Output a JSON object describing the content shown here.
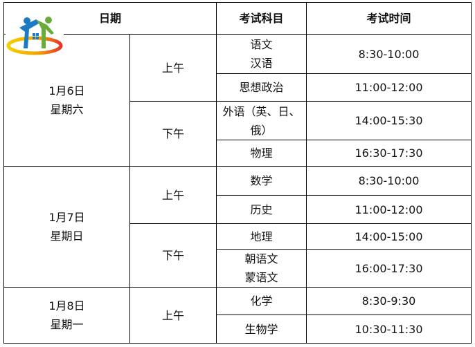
{
  "header": {
    "date": "日期",
    "subject": "考试科目",
    "time": "考试时间"
  },
  "days": [
    {
      "date": "1月6日",
      "weekday": "星期六",
      "am": "上午",
      "pm": "下午",
      "rows": [
        [
          "语文\n汉语",
          "8:30-10:00"
        ],
        [
          "思想政治",
          "11:00-12:00"
        ],
        [
          "外语（英、日、\n俄）",
          "14:00-15:30"
        ],
        [
          "物理",
          "16:30-17:30"
        ]
      ]
    },
    {
      "date": "1月7日",
      "weekday": "星期日",
      "am": "上午",
      "pm": "下午",
      "rows": [
        [
          "数学",
          "8:30-10:00"
        ],
        [
          "历史",
          "11:00-12:00"
        ],
        [
          "地理",
          "14:00-15:00"
        ],
        [
          "朝语文\n蒙语文",
          "16:00-17:30"
        ]
      ]
    },
    {
      "date": "1月8日",
      "weekday": "星期一",
      "am": "上午",
      "rows": [
        [
          "化学",
          "8:30-9:30"
        ],
        [
          "生物学",
          "10:30-11:30"
        ]
      ]
    }
  ],
  "logo": {
    "colors": [
      "#1a7bc4",
      "#6aac3a",
      "#f4b400",
      "#e5352b"
    ]
  }
}
